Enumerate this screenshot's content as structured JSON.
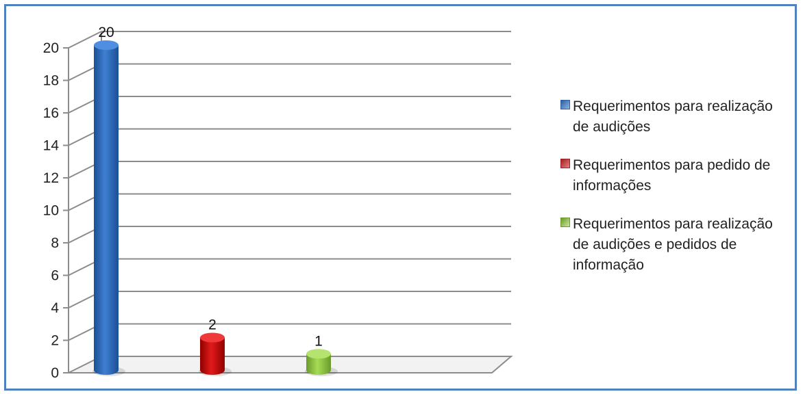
{
  "chart_data": {
    "type": "bar",
    "style": "3d-cylinder",
    "categories": [
      "Requerimentos para realização de audições",
      "Requerimentos para pedido de informações",
      "Requerimentos para realização de audições e pedidos de informação"
    ],
    "values": [
      20,
      2,
      1
    ],
    "data_labels": [
      "20",
      "2",
      "1"
    ],
    "colors": [
      "#2e6bbf",
      "#c00000",
      "#8dc63f"
    ],
    "ylim": [
      0,
      20
    ],
    "yticks": [
      0,
      2,
      4,
      6,
      8,
      10,
      12,
      14,
      16,
      18,
      20
    ],
    "grid": true,
    "legend_position": "right",
    "legend": [
      {
        "label": "Requerimentos para realização de audições",
        "color": "#4f81bd"
      },
      {
        "label": "Requerimentos para pedido de informações",
        "color": "#c0504d"
      },
      {
        "label": "Requerimentos para realização de audições e pedidos de informação",
        "color": "#9bbb59"
      }
    ]
  }
}
